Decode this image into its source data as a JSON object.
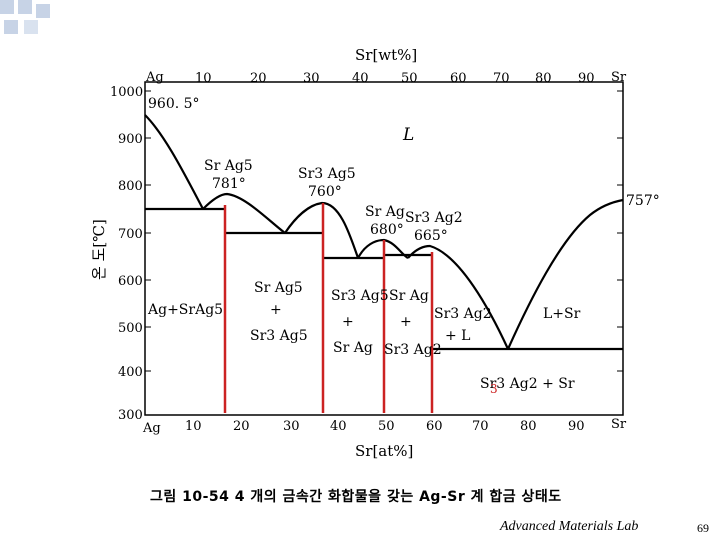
{
  "colors": {
    "boundary": "#000000",
    "highlight": "#cc2222",
    "deco": "#c7d3e6"
  },
  "diagram": {
    "top_axis": {
      "title": "Sr[wt%]",
      "end_left": "Ag",
      "end_right": "Sr",
      "ticks": [
        "10",
        "20",
        "30",
        "40",
        "50",
        "60",
        "70",
        "80",
        "90"
      ]
    },
    "bottom_axis": {
      "title": "Sr[at%]",
      "end_left": "Ag",
      "end_right": "Sr",
      "ticks": [
        "10",
        "20",
        "30",
        "40",
        "50",
        "60",
        "70",
        "80",
        "90"
      ]
    },
    "y_axis": {
      "title": "온 도[℃]",
      "ticks": [
        "1000",
        "900",
        "800",
        "700",
        "600",
        "500",
        "400",
        "300"
      ]
    },
    "labels": {
      "ag_melting": "960. 5°",
      "liquid": "L",
      "sr_ag5": "Sr Ag5",
      "sr_ag5_temp": "781°",
      "sr3_ag5": "Sr3 Ag5",
      "sr3_ag5_temp": "760°",
      "sr_ag": "Sr Ag",
      "sr_ag_temp": "680°",
      "sr3_ag2": "Sr3 Ag2",
      "sr3_ag2_temp": "665°",
      "sr_melting": "757°",
      "field_ag_srag5": "Ag+SrAg5",
      "field_srag5_sr3ag5_a": "Sr Ag5",
      "field_srag5_sr3ag5_b": "+",
      "field_srag5_sr3ag5_c": "Sr3 Ag5",
      "field_sr3ag5_srag_a": "Sr3 Ag5",
      "field_sr3ag5_srag_b": "+",
      "field_sr3ag5_srag_c": "Sr Ag",
      "field_srag_sr3ag2_a": "Sr Ag",
      "field_srag_sr3ag2_b": "+",
      "field_srag_sr3ag2_c": "Sr3 Ag2",
      "field_sr3ag2_l_a": "Sr3 Ag2",
      "field_sr3ag2_l_b": "+ L",
      "field_l_sr": "L+Sr",
      "field_sr3ag2_sr": "Sr3 Ag2 + Sr",
      "mark_3": "3"
    }
  },
  "caption": "그림 10-54  4 개의 금속간 화합물을 갖는 Ag-Sr 계 합금 상태도",
  "footer": {
    "lab": "Advanced Materials Lab",
    "page": "69"
  }
}
